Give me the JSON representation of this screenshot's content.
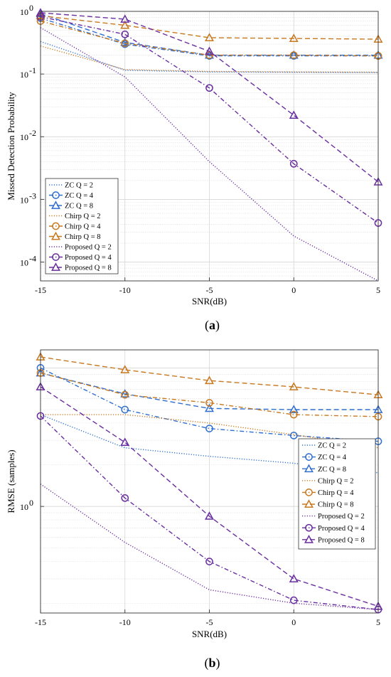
{
  "chart_data": [
    {
      "type": "line",
      "caption": "(a)",
      "xlabel": "SNR(dB)",
      "ylabel": "Missed Detection Probability",
      "yscale": "log",
      "xlim": [
        -15,
        5
      ],
      "ylim": [
        5e-05,
        1
      ],
      "xticks": [
        -15,
        -10,
        -5,
        0,
        5
      ],
      "xtick_labels": [
        "-15",
        "-10",
        "-5",
        "0",
        "5"
      ],
      "yticks": [
        0.0001,
        0.001,
        0.01,
        0.1,
        1
      ],
      "ytick_labels": [
        {
          "base": "10",
          "exp": "-4"
        },
        {
          "base": "10",
          "exp": "-3"
        },
        {
          "base": "10",
          "exp": "-2"
        },
        {
          "base": "10",
          "exp": "-1"
        },
        {
          "base": "10",
          "exp": "0"
        }
      ],
      "grid": true,
      "legend_position": "lower-left",
      "x": [
        -15,
        -10,
        -5,
        0,
        5
      ],
      "series": [
        {
          "name": "ZC  Q = 2",
          "color": "#2f6fd0",
          "dash": "dotted",
          "marker": "none",
          "values": [
            0.33,
            0.115,
            0.108,
            0.107,
            0.106
          ]
        },
        {
          "name": "ZC  Q = 4",
          "color": "#2f6fd0",
          "dash": "dashdot",
          "marker": "circle",
          "values": [
            0.78,
            0.3,
            0.195,
            0.195,
            0.195
          ]
        },
        {
          "name": "ZC  Q = 8",
          "color": "#2f6fd0",
          "dash": "dashed",
          "marker": "triangle",
          "values": [
            0.92,
            0.32,
            0.2,
            0.2,
            0.2
          ]
        },
        {
          "name": "Chirp  Q = 2",
          "color": "#c8781e",
          "dash": "dotted",
          "marker": "none",
          "values": [
            0.28,
            0.118,
            0.11,
            0.108,
            0.107
          ]
        },
        {
          "name": "Chirp  Q = 4",
          "color": "#c8781e",
          "dash": "dashdot",
          "marker": "circle",
          "values": [
            0.7,
            0.31,
            0.2,
            0.2,
            0.195
          ]
        },
        {
          "name": "Chirp  Q = 8",
          "color": "#c8781e",
          "dash": "dashed",
          "marker": "triangle",
          "values": [
            0.85,
            0.6,
            0.38,
            0.37,
            0.36
          ]
        },
        {
          "name": "Proposed  Q = 2",
          "color": "#6a2ea0",
          "dash": "dotted",
          "marker": "none",
          "values": [
            0.55,
            0.09,
            0.004,
            0.00026,
            5e-05
          ]
        },
        {
          "name": "Proposed  Q = 4",
          "color": "#6a2ea0",
          "dash": "dashdot",
          "marker": "circle",
          "values": [
            0.82,
            0.43,
            0.06,
            0.0037,
            0.00042
          ]
        },
        {
          "name": "Proposed  Q = 8",
          "color": "#6a2ea0",
          "dash": "dashed",
          "marker": "triangle",
          "values": [
            0.95,
            0.75,
            0.23,
            0.022,
            0.0019
          ]
        }
      ]
    },
    {
      "type": "line",
      "caption": "(b)",
      "xlabel": "SNR(dB)",
      "ylabel": "RMSE (samples)",
      "yscale": "log",
      "xlim": [
        -15,
        5
      ],
      "ylim": [
        0.17,
        13.5
      ],
      "xticks": [
        -15,
        -10,
        -5,
        0,
        5
      ],
      "xtick_labels": [
        "-15",
        "-10",
        "-5",
        "0",
        "5"
      ],
      "yticks": [
        1
      ],
      "ytick_labels": [
        {
          "base": "10",
          "exp": "0"
        }
      ],
      "grid": true,
      "legend_position": "lower-right",
      "x": [
        -15,
        -10,
        -5,
        0,
        5
      ],
      "series": [
        {
          "name": "ZC  Q = 2",
          "color": "#2f6fd0",
          "dash": "dotted",
          "marker": "none",
          "values": [
            4.6,
            2.65,
            2.3,
            2.05,
            1.75
          ]
        },
        {
          "name": "ZC  Q = 4",
          "color": "#2f6fd0",
          "dash": "dashdot",
          "marker": "circle",
          "values": [
            10.0,
            5.0,
            3.65,
            3.25,
            2.95
          ]
        },
        {
          "name": "ZC  Q = 8",
          "color": "#2f6fd0",
          "dash": "dashed",
          "marker": "triangle",
          "values": [
            9.2,
            6.5,
            5.1,
            5.0,
            5.0
          ]
        },
        {
          "name": "Chirp  Q = 2",
          "color": "#c8781e",
          "dash": "dotted",
          "marker": "none",
          "values": [
            4.6,
            4.6,
            4.0,
            3.3,
            2.65
          ]
        },
        {
          "name": "Chirp  Q = 4",
          "color": "#c8781e",
          "dash": "dashdot",
          "marker": "circle",
          "values": [
            9.2,
            6.4,
            5.6,
            4.6,
            4.45
          ]
        },
        {
          "name": "Chirp  Q = 8",
          "color": "#c8781e",
          "dash": "dashed",
          "marker": "triangle",
          "values": [
            12.0,
            9.7,
            8.1,
            7.3,
            6.4
          ]
        },
        {
          "name": "Proposed  Q = 2",
          "color": "#6a2ea0",
          "dash": "dotted",
          "marker": "none",
          "values": [
            1.45,
            0.55,
            0.25,
            0.2,
            0.18
          ]
        },
        {
          "name": "Proposed  Q = 4",
          "color": "#6a2ea0",
          "dash": "dashdot",
          "marker": "circle",
          "values": [
            4.5,
            1.15,
            0.4,
            0.21,
            0.18
          ]
        },
        {
          "name": "Proposed  Q = 8",
          "color": "#6a2ea0",
          "dash": "dashed",
          "marker": "triangle",
          "values": [
            7.3,
            2.9,
            0.85,
            0.3,
            0.19
          ]
        }
      ]
    }
  ]
}
